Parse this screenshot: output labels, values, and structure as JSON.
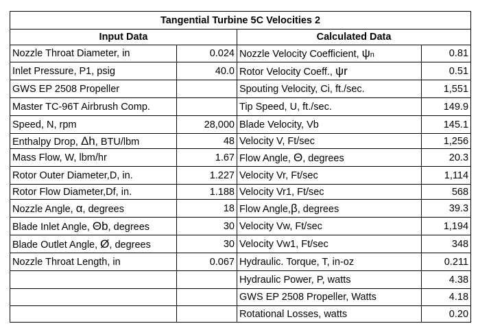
{
  "title": "Tangential Turbine 5C Velocities 2",
  "headers": {
    "input": "Input Data",
    "calculated": "Calculated Data"
  },
  "input_rows": [
    {
      "label": "Nozzle Throat Diameter, in",
      "value": "0.024"
    },
    {
      "label": "Inlet Pressure, P1, psig",
      "value": "40.0"
    },
    {
      "label": "GWS EP 2508 Propeller",
      "value": ""
    },
    {
      "label": "Master TC-96T Airbrush Comp.",
      "value": ""
    },
    {
      "label": "Speed, N, rpm",
      "value": "28,000"
    },
    {
      "label_pre": "Enthalpy Drop, ",
      "sym": "Δh",
      "label_post": ", BTU/lbm",
      "value": "48"
    },
    {
      "label": "Mass Flow, W, lbm/hr",
      "value": "1.67"
    },
    {
      "label": "Rotor Outer Diameter,D, in.",
      "value": "1.227"
    },
    {
      "label": "Rotor Flow Diameter,Df, in.",
      "value": "1.188"
    },
    {
      "label_pre": "Nozzle Angle, ",
      "sym": "α",
      "label_post": ", degrees",
      "value": "18"
    },
    {
      "label_pre": "Blade Inlet Angle, ",
      "sym": "Θb",
      "label_post": ", degrees",
      "value": "30"
    },
    {
      "label_pre": "Blade Outlet Angle, ",
      "sym": "Ø",
      "label_post": ", degrees",
      "value": "30"
    },
    {
      "label": "Nozzle Throat Length, in",
      "value": "0.067"
    },
    {
      "label": "",
      "value": ""
    },
    {
      "label": "",
      "value": ""
    },
    {
      "label": "",
      "value": ""
    }
  ],
  "calc_rows": [
    {
      "label_pre": "Nozzle Velocity Coefficient, ",
      "sym": "ψ",
      "sym_sub": "n",
      "label_post": "",
      "value": "0.81"
    },
    {
      "label_pre": "Rotor Velocity Coeff., ",
      "sym": "ψr",
      "label_post": "",
      "value": "0.51"
    },
    {
      "label": "Spouting Velocity, Ci, ft./sec.",
      "value": "1,551"
    },
    {
      "label": "Tip Speed, U, ft./sec.",
      "value": "149.9"
    },
    {
      "label": "Blade Velocity, Vb",
      "value": "145.1"
    },
    {
      "label": "Velocity V, Ft/sec",
      "value": "1,256"
    },
    {
      "label_pre": "Flow Angle, ",
      "sym": "Θ",
      "label_post": ", degrees",
      "value": "20.3"
    },
    {
      "label": "Velocity Vr, Ft/sec",
      "value": "1,114"
    },
    {
      "label": "Velocity Vr1, Ft/sec",
      "value": "568"
    },
    {
      "label_pre": "Flow Angle,",
      "sym": "β",
      "label_post": ", degrees",
      "value": "39.3"
    },
    {
      "label": "Velocity Vw, Ft/sec",
      "value": "1,194"
    },
    {
      "label": "Velocity Vw1, Ft/sec",
      "value": "348"
    },
    {
      "label": "Hydraulic. Torque, T, in-oz",
      "value": "0.211"
    },
    {
      "label": "Hydraulic Power, P, watts",
      "value": "4.38"
    },
    {
      "label": "GWS EP 2508 Propeller, Watts",
      "value": "4.18"
    },
    {
      "label": "Rotational Losses, watts",
      "value": "0.20"
    }
  ]
}
